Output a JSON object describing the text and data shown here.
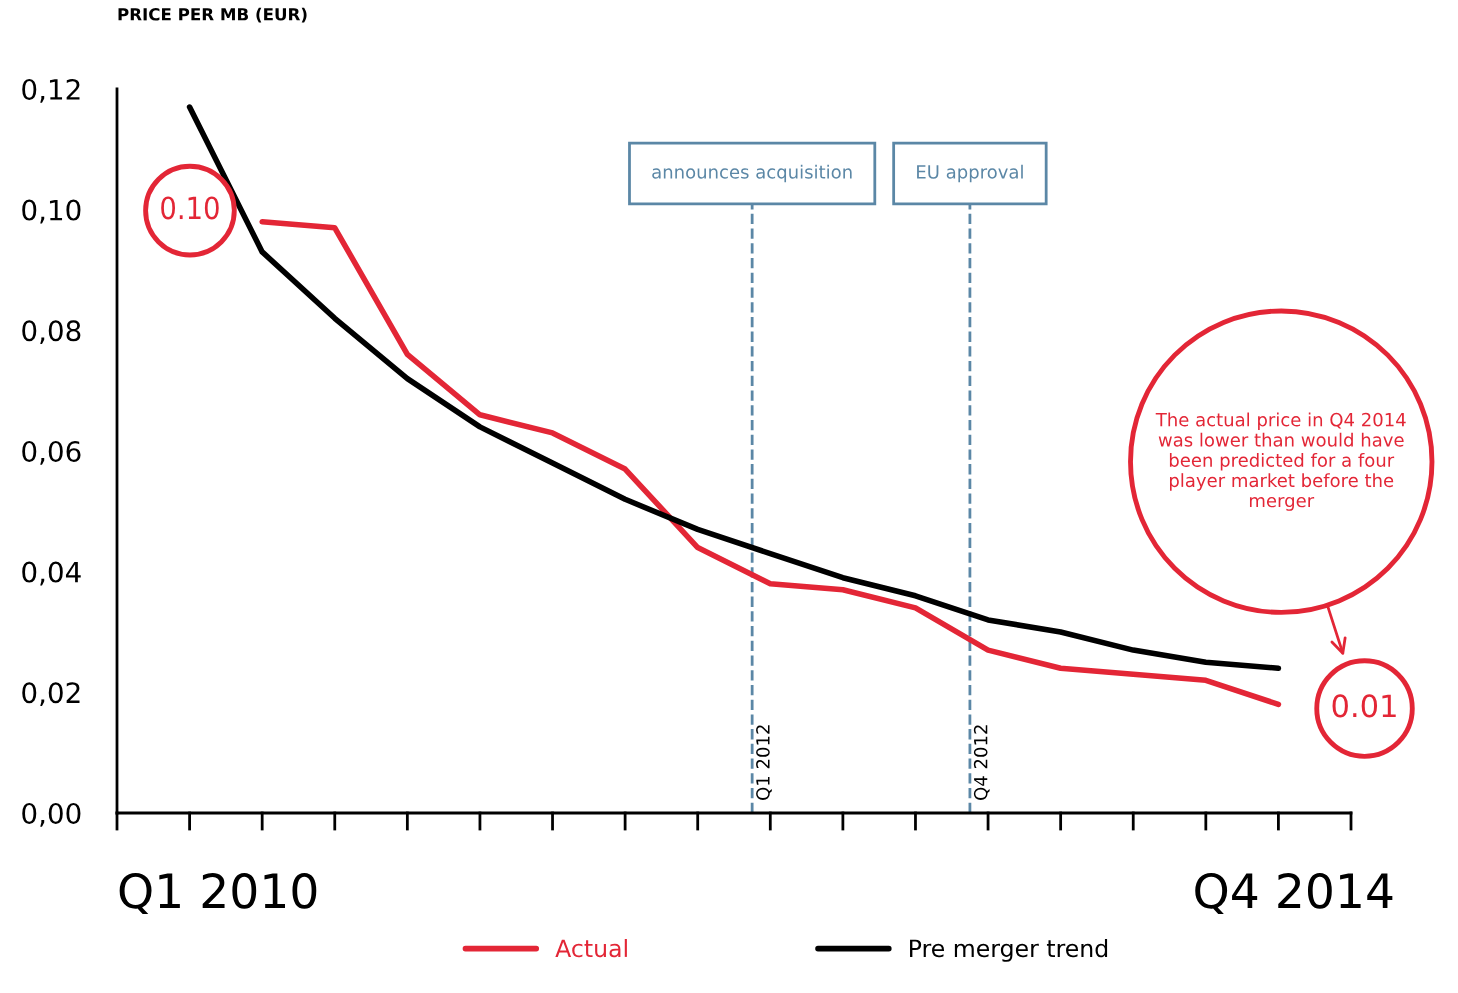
{
  "chart_data": {
    "type": "line",
    "ylabel": "PRICE PER MB (EUR)",
    "categories": [
      null,
      null,
      null,
      null,
      null,
      null,
      null,
      null,
      null,
      null,
      null,
      null,
      null,
      null,
      null,
      null,
      null,
      null
    ],
    "ylim": [
      0,
      0.12
    ],
    "yticks": [
      {
        "value": 0,
        "label": "0,00"
      },
      {
        "value": 0.02,
        "label": "0,02"
      },
      {
        "value": 0.04,
        "label": "0,04"
      },
      {
        "value": 0.06,
        "label": "0,06"
      },
      {
        "value": 0.08,
        "label": "0,08"
      },
      {
        "value": 0.1,
        "label": "0,10"
      },
      {
        "value": 0.12,
        "label": "0,12"
      }
    ],
    "grid": false,
    "legend": "bottom",
    "series": [
      {
        "name": "Actual",
        "color": "#e32636",
        "values": [
          null,
          null,
          0.098,
          0.097,
          0.076,
          0.066,
          0.063,
          0.057,
          0.044,
          0.038,
          0.037,
          0.034,
          0.027,
          0.024,
          0.023,
          0.022,
          0.018,
          null
        ]
      },
      {
        "name": "Pre merger trend",
        "color": "#000000",
        "values": [
          null,
          0.117,
          0.093,
          0.082,
          0.072,
          0.064,
          0.058,
          0.052,
          0.047,
          0.043,
          0.039,
          0.036,
          0.032,
          0.03,
          0.027,
          0.025,
          0.024,
          null
        ]
      }
    ],
    "annotations": [
      "0.10",
      "0.01",
      "The actual price in Q4 2014 was lower than would have been predicted for a four player market before the merger",
      "announces acquisition",
      "EU approval",
      "Q1 2012",
      "Q4 2012",
      "Q1 2010",
      "Q4 2014"
    ]
  }
}
